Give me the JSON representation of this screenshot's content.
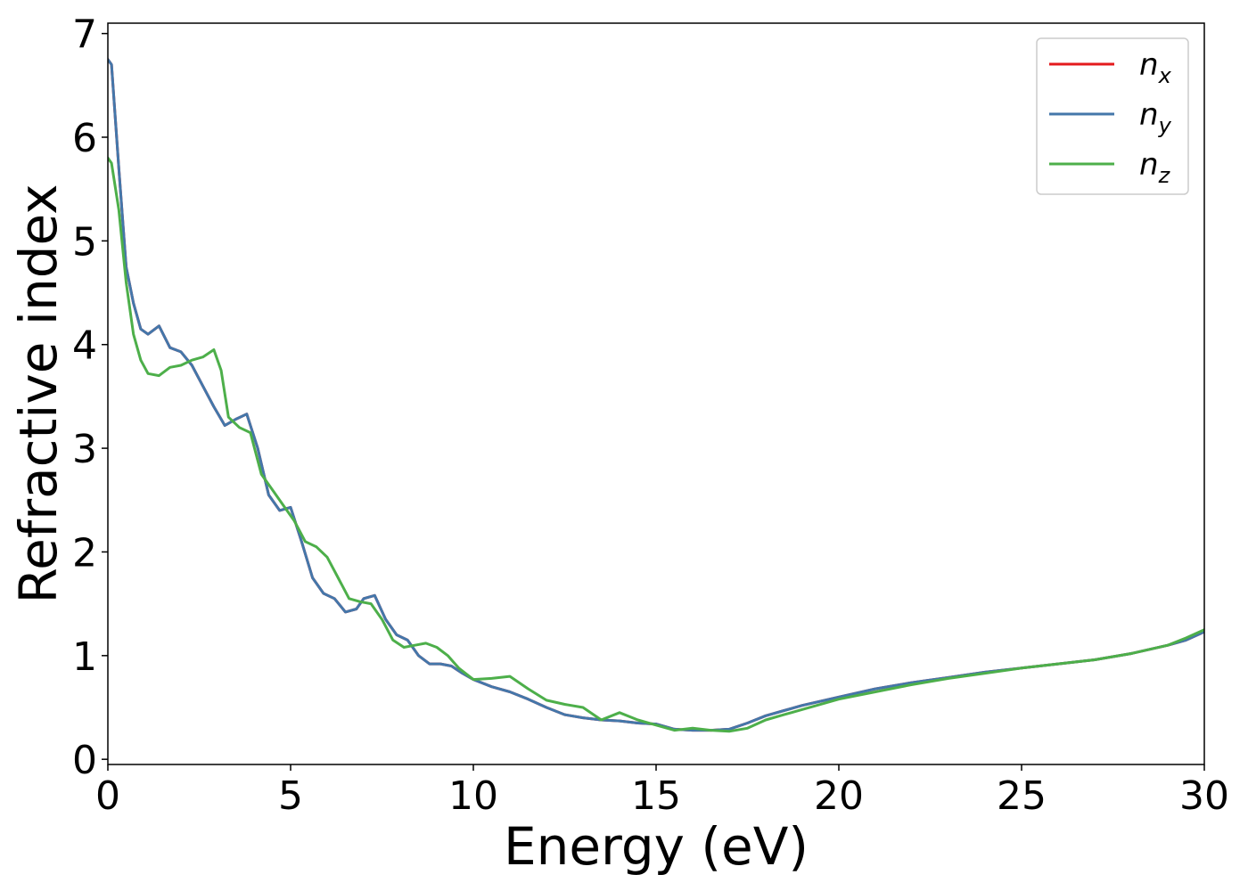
{
  "chart_data": {
    "type": "line",
    "title": "",
    "xlabel": "Energy (eV)",
    "ylabel": "Refractive index",
    "xlim": [
      0,
      30
    ],
    "ylim": [
      -0.05,
      7.1
    ],
    "xticks": [
      0,
      5,
      10,
      15,
      20,
      25,
      30
    ],
    "yticks": [
      0,
      1,
      2,
      3,
      4,
      5,
      6,
      7
    ],
    "grid": false,
    "legend_position": "top-right",
    "series": [
      {
        "name": "n",
        "subscript": "x",
        "color": "#e41a1c",
        "x": [
          0,
          0.1,
          0.3,
          0.5,
          0.7,
          0.9,
          1.1,
          1.4,
          1.7,
          2.0,
          2.3,
          2.6,
          2.9,
          3.2,
          3.5,
          3.8,
          4.1,
          4.4,
          4.7,
          5.0,
          5.3,
          5.6,
          5.9,
          6.2,
          6.5,
          6.8,
          7.0,
          7.3,
          7.6,
          7.9,
          8.2,
          8.5,
          8.8,
          9.1,
          9.4,
          9.7,
          10.0,
          10.5,
          11.0,
          11.5,
          12.0,
          12.5,
          13.0,
          13.5,
          14.0,
          14.5,
          15.0,
          15.5,
          16.0,
          16.5,
          17.0,
          17.5,
          18.0,
          18.5,
          19.0,
          20.0,
          21.0,
          22.0,
          23.0,
          24.0,
          25.0,
          26.0,
          27.0,
          28.0,
          29.0,
          29.5,
          30.0
        ],
        "y": [
          6.75,
          6.7,
          5.7,
          4.75,
          4.4,
          4.15,
          4.1,
          4.18,
          3.97,
          3.93,
          3.8,
          3.6,
          3.4,
          3.22,
          3.28,
          3.33,
          3.0,
          2.55,
          2.4,
          2.43,
          2.1,
          1.75,
          1.6,
          1.55,
          1.42,
          1.45,
          1.55,
          1.58,
          1.35,
          1.2,
          1.15,
          1.0,
          0.92,
          0.92,
          0.9,
          0.83,
          0.77,
          0.7,
          0.65,
          0.58,
          0.5,
          0.43,
          0.4,
          0.38,
          0.37,
          0.35,
          0.34,
          0.29,
          0.28,
          0.28,
          0.29,
          0.35,
          0.42,
          0.47,
          0.52,
          0.6,
          0.68,
          0.74,
          0.79,
          0.84,
          0.88,
          0.92,
          0.96,
          1.02,
          1.1,
          1.15,
          1.23
        ]
      },
      {
        "name": "n",
        "subscript": "y",
        "color": "#4477aa",
        "x": [
          0,
          0.1,
          0.3,
          0.5,
          0.7,
          0.9,
          1.1,
          1.4,
          1.7,
          2.0,
          2.3,
          2.6,
          2.9,
          3.2,
          3.5,
          3.8,
          4.1,
          4.4,
          4.7,
          5.0,
          5.3,
          5.6,
          5.9,
          6.2,
          6.5,
          6.8,
          7.0,
          7.3,
          7.6,
          7.9,
          8.2,
          8.5,
          8.8,
          9.1,
          9.4,
          9.7,
          10.0,
          10.5,
          11.0,
          11.5,
          12.0,
          12.5,
          13.0,
          13.5,
          14.0,
          14.5,
          15.0,
          15.5,
          16.0,
          16.5,
          17.0,
          17.5,
          18.0,
          18.5,
          19.0,
          20.0,
          21.0,
          22.0,
          23.0,
          24.0,
          25.0,
          26.0,
          27.0,
          28.0,
          29.0,
          29.5,
          30.0
        ],
        "y": [
          6.75,
          6.7,
          5.7,
          4.75,
          4.4,
          4.15,
          4.1,
          4.18,
          3.97,
          3.93,
          3.8,
          3.6,
          3.4,
          3.22,
          3.28,
          3.33,
          3.0,
          2.55,
          2.4,
          2.43,
          2.1,
          1.75,
          1.6,
          1.55,
          1.42,
          1.45,
          1.55,
          1.58,
          1.35,
          1.2,
          1.15,
          1.0,
          0.92,
          0.92,
          0.9,
          0.83,
          0.77,
          0.7,
          0.65,
          0.58,
          0.5,
          0.43,
          0.4,
          0.38,
          0.37,
          0.35,
          0.34,
          0.29,
          0.28,
          0.28,
          0.29,
          0.35,
          0.42,
          0.47,
          0.52,
          0.6,
          0.68,
          0.74,
          0.79,
          0.84,
          0.88,
          0.92,
          0.96,
          1.02,
          1.1,
          1.15,
          1.23
        ]
      },
      {
        "name": "n",
        "subscript": "z",
        "color": "#4daf4a",
        "x": [
          0,
          0.1,
          0.3,
          0.5,
          0.7,
          0.9,
          1.1,
          1.4,
          1.7,
          2.0,
          2.3,
          2.6,
          2.9,
          3.1,
          3.3,
          3.6,
          3.9,
          4.2,
          4.5,
          4.8,
          5.1,
          5.4,
          5.7,
          6.0,
          6.3,
          6.6,
          6.9,
          7.2,
          7.5,
          7.8,
          8.1,
          8.4,
          8.7,
          9.0,
          9.3,
          9.6,
          10.0,
          10.5,
          11.0,
          11.5,
          12.0,
          12.5,
          13.0,
          13.5,
          14.0,
          14.5,
          15.0,
          15.5,
          16.0,
          16.5,
          17.0,
          17.5,
          18.0,
          18.5,
          19.0,
          20.0,
          21.0,
          22.0,
          23.0,
          24.0,
          25.0,
          26.0,
          27.0,
          28.0,
          29.0,
          29.5,
          30.0
        ],
        "y": [
          5.8,
          5.75,
          5.3,
          4.6,
          4.1,
          3.85,
          3.72,
          3.7,
          3.78,
          3.8,
          3.85,
          3.88,
          3.95,
          3.75,
          3.3,
          3.2,
          3.15,
          2.75,
          2.6,
          2.45,
          2.3,
          2.1,
          2.05,
          1.95,
          1.75,
          1.55,
          1.52,
          1.5,
          1.35,
          1.15,
          1.08,
          1.1,
          1.12,
          1.08,
          1.0,
          0.88,
          0.77,
          0.78,
          0.8,
          0.68,
          0.57,
          0.53,
          0.5,
          0.38,
          0.45,
          0.38,
          0.33,
          0.28,
          0.3,
          0.28,
          0.27,
          0.3,
          0.38,
          0.43,
          0.48,
          0.58,
          0.65,
          0.72,
          0.78,
          0.83,
          0.88,
          0.92,
          0.96,
          1.02,
          1.1,
          1.17,
          1.25
        ]
      }
    ]
  }
}
